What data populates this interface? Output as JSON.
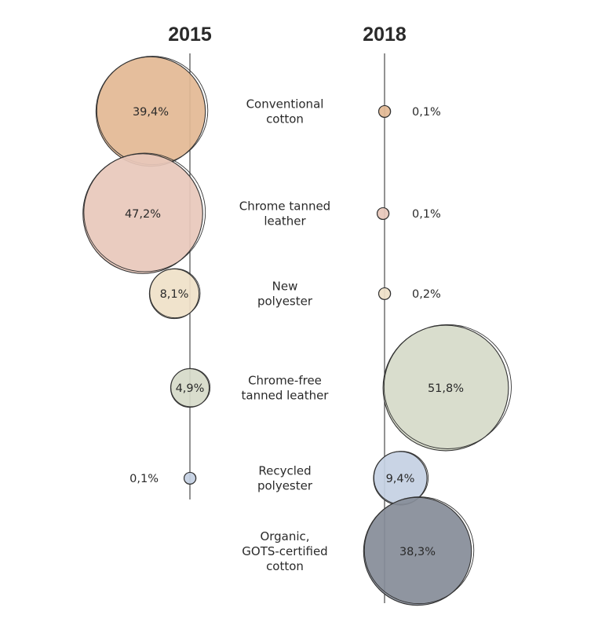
{
  "chart_data": {
    "type": "bubble",
    "columns": [
      "2015",
      "2018"
    ],
    "categories": [
      {
        "label": [
          "Conventional",
          "cotton"
        ],
        "color": "#e3b894",
        "values": {
          "2015": "39,4%",
          "2018": "0,1%"
        },
        "numeric": {
          "2015": 39.4,
          "2018": 0.1
        }
      },
      {
        "label": [
          "Chrome tanned",
          "leather"
        ],
        "color": "#e8c8bb",
        "values": {
          "2015": "47,2%",
          "2018": "0,1%"
        },
        "numeric": {
          "2015": 47.2,
          "2018": 0.1
        }
      },
      {
        "label": [
          "New",
          "polyester"
        ],
        "color": "#efe1c8",
        "values": {
          "2015": "8,1%",
          "2018": "0,2%"
        },
        "numeric": {
          "2015": 8.1,
          "2018": 0.2
        }
      },
      {
        "label": [
          "Chrome-free",
          "tanned leather"
        ],
        "color": "#d6dac9",
        "values": {
          "2015": "4,9%",
          "2018": "51,8%"
        },
        "numeric": {
          "2015": 4.9,
          "2018": 51.8
        }
      },
      {
        "label": [
          "Recycled",
          "polyester"
        ],
        "color": "#c4d0e3",
        "values": {
          "2015": "0,1%",
          "2018": "9,4%"
        },
        "numeric": {
          "2015": 0.1,
          "2018": 9.4
        }
      },
      {
        "label": [
          "Organic,",
          "GOTS-certified",
          "cotton"
        ],
        "color": "#868c98",
        "values": {
          "2018": "38,3%"
        },
        "numeric": {
          "2018": 38.3
        }
      }
    ]
  }
}
